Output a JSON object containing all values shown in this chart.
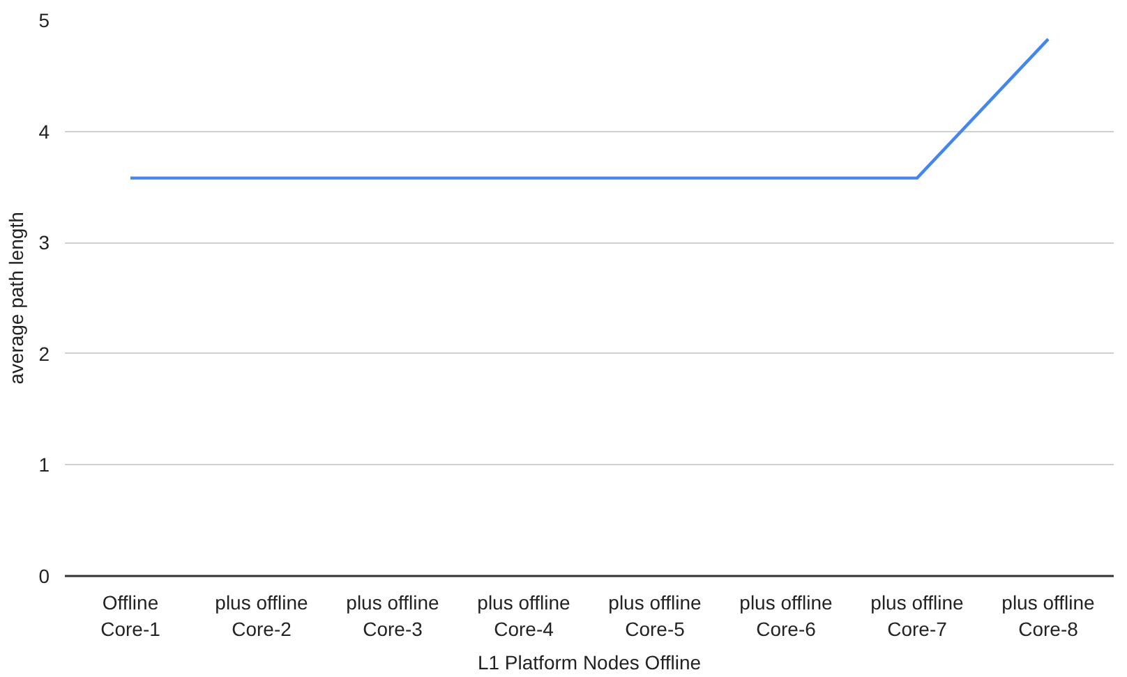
{
  "chart_data": {
    "type": "line",
    "xlabel": "L1 Platform Nodes Offline",
    "ylabel": "average path length",
    "categories": [
      "Offline\nCore-1",
      "plus offline\nCore-2",
      "plus offline\nCore-3",
      "plus offline\nCore-4",
      "plus offline\nCore-5",
      "plus offline\nCore-6",
      "plus offline\nCore-7",
      "plus offline\nCore-8"
    ],
    "series": [
      {
        "color": "#4285f4",
        "values": [
          3.58,
          3.58,
          3.58,
          3.58,
          3.58,
          3.58,
          3.58,
          4.83
        ]
      }
    ],
    "ylim": [
      0,
      5
    ],
    "yticks": [
      0,
      1,
      2,
      3,
      4,
      5
    ],
    "grid": "y",
    "marker": "none",
    "line_style": "solid"
  }
}
